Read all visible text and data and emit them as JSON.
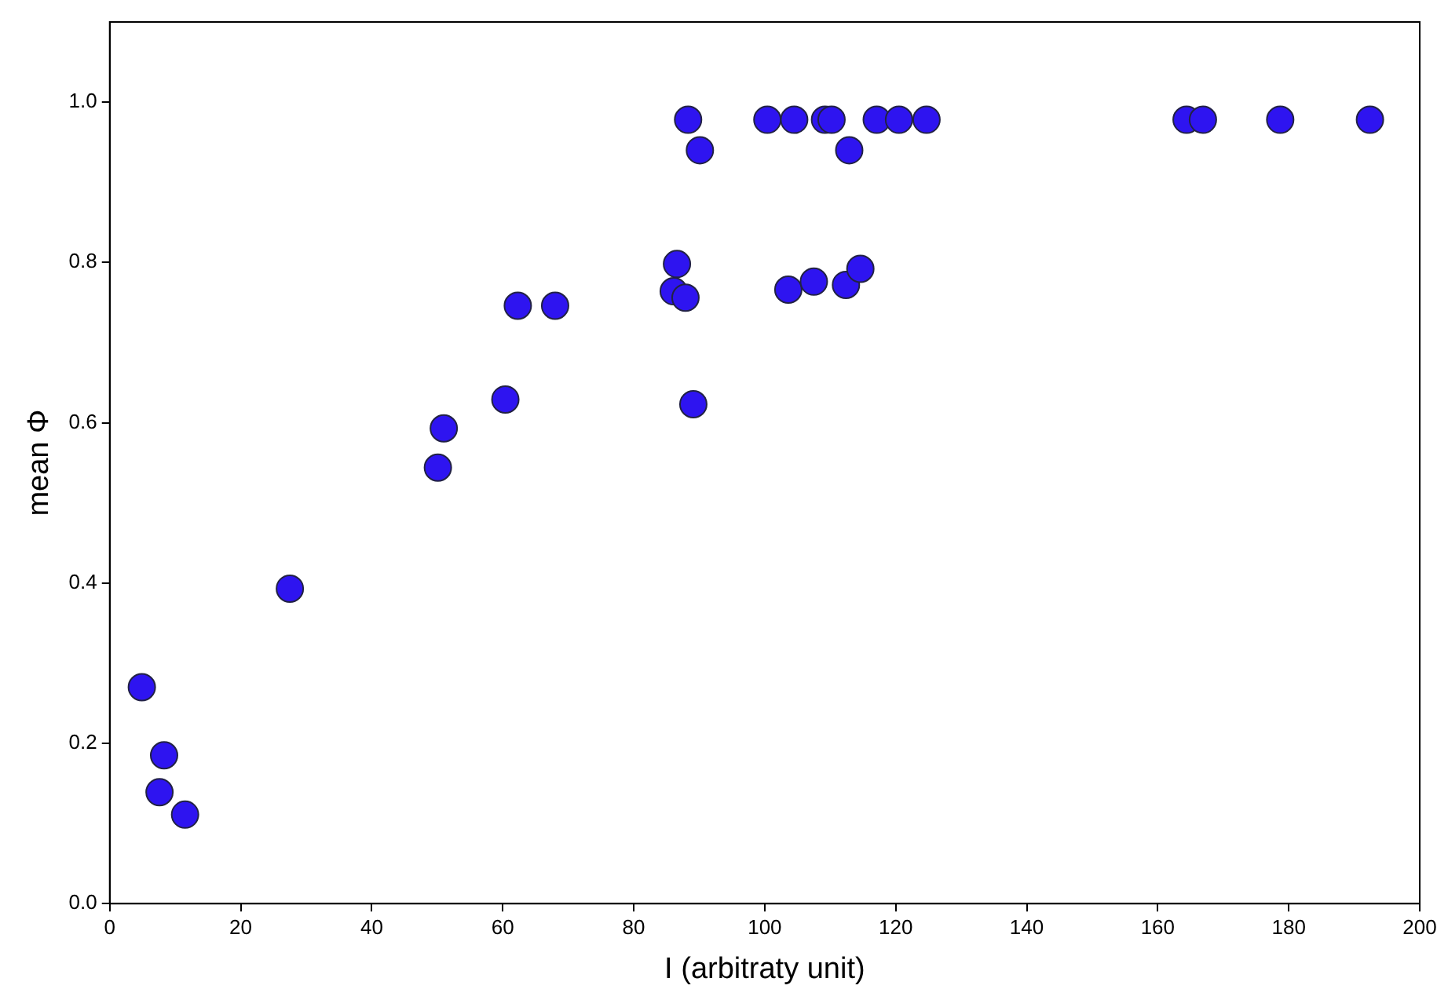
{
  "chart_data": {
    "type": "scatter",
    "xlabel": "I (arbitraty unit)",
    "ylabel": "mean Φ",
    "marker": "circle",
    "grid": false,
    "legend": false,
    "xlim": [
      0,
      200
    ],
    "xticks": [
      0,
      20,
      40,
      60,
      80,
      100,
      120,
      140,
      160,
      180,
      200
    ],
    "ylim": [
      0,
      1.1
    ],
    "yticks": [
      {
        "value": 0,
        "label": "0.0"
      },
      {
        "value": 0.2,
        "label": "0.2"
      },
      {
        "value": 0.4,
        "label": "0.4"
      },
      {
        "value": 0.6,
        "label": "0.6"
      },
      {
        "value": 0.8,
        "label": "0.8"
      },
      {
        "value": 1,
        "label": "1.0"
      }
    ],
    "series": [
      {
        "color": "#2e14f0",
        "x": [
          4.9,
          8.3,
          7.6,
          11.5,
          27.5,
          50.1,
          51.0,
          60.4,
          62.3,
          68.0,
          86.1,
          86.6,
          87.9,
          89.1,
          88.3,
          90.1,
          100.4,
          104.5,
          109.2,
          110.2,
          112.9,
          117.1,
          120.5,
          124.7,
          103.6,
          107.5,
          112.4,
          114.6,
          164.4,
          166.9,
          178.7,
          192.4
        ],
        "values": [
          0.27,
          0.185,
          0.139,
          0.111,
          0.393,
          0.544,
          0.593,
          0.629,
          0.746,
          0.746,
          0.764,
          0.798,
          0.756,
          0.623,
          0.978,
          0.94,
          0.978,
          0.978,
          0.978,
          0.978,
          0.94,
          0.978,
          0.978,
          0.978,
          0.766,
          0.776,
          0.772,
          0.792,
          0.978,
          0.978,
          0.978,
          0.978
        ]
      }
    ]
  }
}
